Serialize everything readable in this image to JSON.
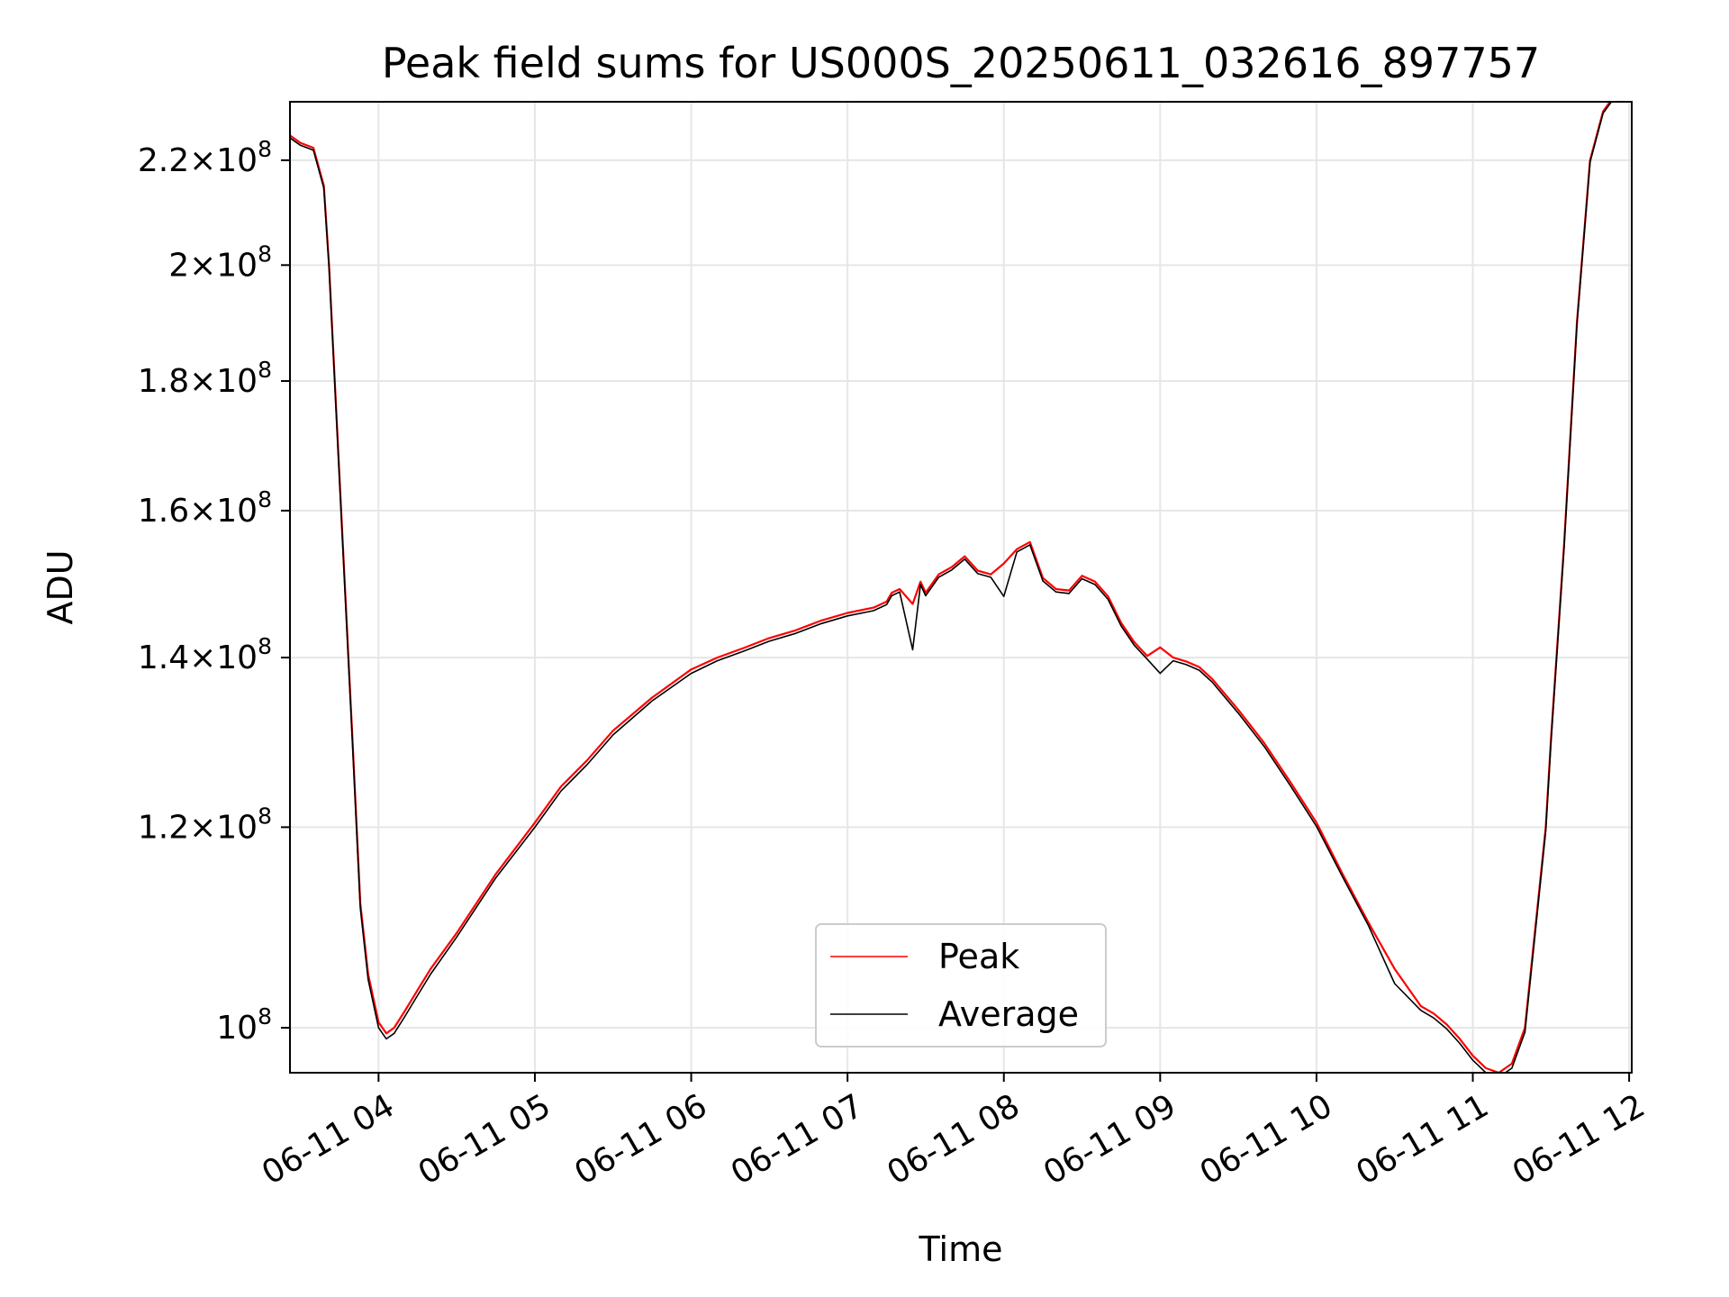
{
  "chart_data": {
    "type": "line",
    "title": "Peak field sums for US000S_20250611_032616_897757",
    "xlabel": "Time",
    "ylabel": "ADU",
    "yscale": "log",
    "xlim": [
      "2025-06-11 03:26",
      "2025-06-11 12:01"
    ],
    "ylim": [
      96000000,
      232000000
    ],
    "grid": true,
    "legend_position": "lower center",
    "x_ticks": [
      "06-11 04",
      "06-11 05",
      "06-11 06",
      "06-11 07",
      "06-11 08",
      "06-11 09",
      "06-11 10",
      "06-11 11",
      "06-11 12"
    ],
    "y_ticks": [
      {
        "value": 100000000,
        "mantissa": "",
        "exponent": "8"
      },
      {
        "value": 120000000,
        "mantissa": "1.2",
        "exponent": "8"
      },
      {
        "value": 140000000,
        "mantissa": "1.4",
        "exponent": "8"
      },
      {
        "value": 160000000,
        "mantissa": "1.6",
        "exponent": "8"
      },
      {
        "value": 180000000,
        "mantissa": "1.8",
        "exponent": "8"
      },
      {
        "value": 200000000,
        "mantissa": "2",
        "exponent": "8"
      },
      {
        "value": 220000000,
        "mantissa": "2.2",
        "exponent": "8"
      }
    ],
    "series": [
      {
        "name": "Peak",
        "color": "#ff0000",
        "x": [
          "03:26",
          "03:30",
          "03:35",
          "03:39",
          "03:41",
          "03:45",
          "03:50",
          "03:53",
          "03:56",
          "04:00",
          "04:03",
          "04:06",
          "04:10",
          "04:15",
          "04:20",
          "04:30",
          "04:45",
          "05:00",
          "05:10",
          "05:20",
          "05:30",
          "05:45",
          "06:00",
          "06:10",
          "06:20",
          "06:30",
          "06:40",
          "06:50",
          "07:00",
          "07:10",
          "07:15",
          "07:17",
          "07:20",
          "07:25",
          "07:28",
          "07:30",
          "07:35",
          "07:40",
          "07:45",
          "07:50",
          "07:55",
          "08:00",
          "08:05",
          "08:10",
          "08:15",
          "08:20",
          "08:25",
          "08:30",
          "08:35",
          "08:40",
          "08:45",
          "08:50",
          "08:55",
          "09:00",
          "09:05",
          "09:10",
          "09:15",
          "09:20",
          "09:30",
          "09:40",
          "09:50",
          "10:00",
          "10:10",
          "10:20",
          "10:30",
          "10:40",
          "10:45",
          "10:50",
          "10:55",
          "11:00",
          "11:05",
          "11:10",
          "11:15",
          "11:20",
          "11:25",
          "11:28",
          "11:30",
          "11:35",
          "11:40",
          "11:45",
          "11:50",
          "11:54",
          "11:57"
        ],
        "values": [
          225000000,
          223500000,
          222500000,
          215000000,
          200000000,
          165000000,
          130000000,
          112000000,
          105000000,
          100500000,
          99500000,
          100000000,
          101500000,
          103500000,
          105500000,
          109000000,
          115000000,
          120500000,
          124500000,
          127500000,
          131000000,
          135000000,
          138500000,
          140000000,
          141200000,
          142500000,
          143500000,
          144800000,
          145800000,
          146500000,
          147300000,
          148500000,
          149000000,
          147000000,
          150000000,
          148500000,
          151000000,
          152000000,
          153500000,
          151500000,
          151000000,
          152500000,
          154500000,
          155500000,
          150500000,
          149000000,
          148800000,
          150800000,
          150000000,
          148000000,
          144500000,
          142000000,
          140200000,
          141300000,
          140000000,
          139500000,
          138800000,
          137300000,
          133500000,
          129500000,
          125000000,
          120500000,
          115000000,
          110000000,
          105500000,
          102000000,
          101300000,
          100300000,
          99000000,
          97500000,
          96400000,
          96000000,
          96800000,
          100000000,
          112000000,
          120000000,
          130000000,
          155000000,
          190000000,
          220000000,
          230000000,
          233000000,
          234000000
        ]
      },
      {
        "name": "Average",
        "color": "#000000",
        "x": [
          "03:26",
          "03:30",
          "03:35",
          "03:39",
          "03:41",
          "03:45",
          "03:50",
          "03:53",
          "03:56",
          "04:00",
          "04:03",
          "04:06",
          "04:10",
          "04:15",
          "04:20",
          "04:30",
          "04:45",
          "05:00",
          "05:10",
          "05:20",
          "05:30",
          "05:45",
          "06:00",
          "06:10",
          "06:20",
          "06:30",
          "06:40",
          "06:50",
          "07:00",
          "07:10",
          "07:15",
          "07:17",
          "07:20",
          "07:25",
          "07:28",
          "07:30",
          "07:35",
          "07:40",
          "07:45",
          "07:50",
          "07:55",
          "08:00",
          "08:05",
          "08:10",
          "08:15",
          "08:20",
          "08:25",
          "08:30",
          "08:35",
          "08:40",
          "08:45",
          "08:50",
          "08:55",
          "09:00",
          "09:05",
          "09:10",
          "09:15",
          "09:20",
          "09:30",
          "09:40",
          "09:50",
          "10:00",
          "10:10",
          "10:20",
          "10:30",
          "10:40",
          "10:45",
          "10:50",
          "10:55",
          "11:00",
          "11:05",
          "11:10",
          "11:15",
          "11:20",
          "11:25",
          "11:28",
          "11:30",
          "11:35",
          "11:40",
          "11:45",
          "11:50",
          "11:54",
          "11:57"
        ],
        "values": [
          224500000,
          223000000,
          222000000,
          214500000,
          199500000,
          164500000,
          129500000,
          111500000,
          104500000,
          100000000,
          99000000,
          99500000,
          101000000,
          103000000,
          105000000,
          108600000,
          114600000,
          120000000,
          124000000,
          127000000,
          130500000,
          134600000,
          138000000,
          139600000,
          140800000,
          142100000,
          143100000,
          144400000,
          145400000,
          146100000,
          146900000,
          148100000,
          148600000,
          141000000,
          149600000,
          148100000,
          150600000,
          151600000,
          153100000,
          151100000,
          150600000,
          148000000,
          154100000,
          155100000,
          150100000,
          148600000,
          148400000,
          150400000,
          149600000,
          147600000,
          144100000,
          141600000,
          139800000,
          138000000,
          139600000,
          139100000,
          138400000,
          136900000,
          133100000,
          129100000,
          124600000,
          120100000,
          114700000,
          109700000,
          104100000,
          101600000,
          100900000,
          99900000,
          98600000,
          97100000,
          96000000,
          95600000,
          96400000,
          99600000,
          111600000,
          119600000,
          129600000,
          154600000,
          189600000,
          219600000,
          229600000,
          232600000,
          233600000
        ]
      }
    ]
  }
}
